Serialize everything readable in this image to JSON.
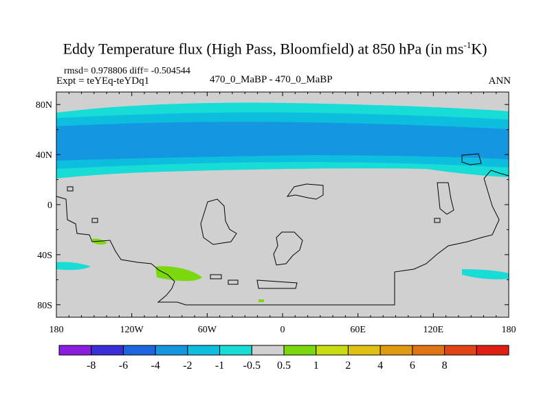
{
  "title": {
    "main": "Eddy Temperature flux (High Pass, Bloomfield) at 850 hPa (in ms",
    "superscript": "-1",
    "suffix": "K)"
  },
  "subtitle": {
    "stats": "rmsd= 0.978806 diff= -0.504544",
    "expt": "Expt = teYEq-teYDq1",
    "center": "470_0_MaBP - 470_0_MaBP",
    "right": "ANN"
  },
  "map": {
    "projection": "cylindrical-equidistant",
    "lon_range": [
      -180,
      180
    ],
    "lat_range": [
      -90,
      90
    ],
    "y_ticks": [
      {
        "lat": 80,
        "label": "80N"
      },
      {
        "lat": 40,
        "label": "40N"
      },
      {
        "lat": 0,
        "label": "0"
      },
      {
        "lat": -40,
        "label": "40S"
      },
      {
        "lat": -80,
        "label": "80S"
      }
    ],
    "x_ticks": [
      {
        "lon": -180,
        "label": "180"
      },
      {
        "lon": -120,
        "label": "120W"
      },
      {
        "lon": -60,
        "label": "60W"
      },
      {
        "lon": 0,
        "label": "0"
      },
      {
        "lon": 60,
        "label": "60E"
      },
      {
        "lon": 120,
        "label": "120E"
      },
      {
        "lon": 180,
        "label": "180"
      }
    ],
    "background_color": "#d0d0d0"
  },
  "colorbar": {
    "colors": [
      "#8a1ee0",
      "#3a2ed8",
      "#1e64e0",
      "#1496e0",
      "#0ebede",
      "#18dcd6",
      "#d0d0d0",
      "#7cd80e",
      "#c8dc10",
      "#e0c012",
      "#e09a12",
      "#e07414",
      "#e04414",
      "#e01e12"
    ],
    "labels": [
      "-8",
      "-6",
      "-4",
      "-2",
      "-1",
      "-0.5",
      "0.5",
      "1",
      "2",
      "4",
      "6",
      "8"
    ]
  }
}
